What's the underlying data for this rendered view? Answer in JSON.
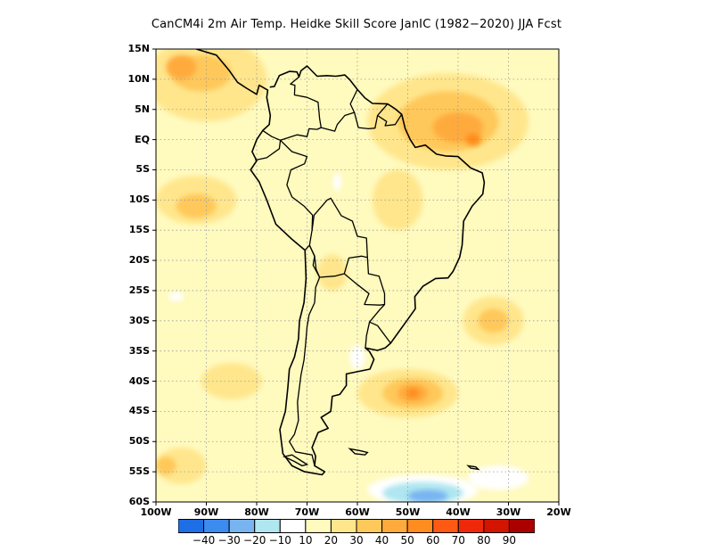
{
  "title": "CanCM4i  2m Air Temp. Heidke Skill Score JanIC (1982−2020) JJA Fcst",
  "map": {
    "lon_range": [
      -100,
      -20
    ],
    "lat_range": [
      -60,
      15
    ],
    "grid": true,
    "lat_ticks": [
      {
        "lat": 15,
        "label": "15N"
      },
      {
        "lat": 10,
        "label": "10N"
      },
      {
        "lat": 5,
        "label": "5N"
      },
      {
        "lat": 0,
        "label": "EQ"
      },
      {
        "lat": -5,
        "label": "5S"
      },
      {
        "lat": -10,
        "label": "10S"
      },
      {
        "lat": -15,
        "label": "15S"
      },
      {
        "lat": -20,
        "label": "20S"
      },
      {
        "lat": -25,
        "label": "25S"
      },
      {
        "lat": -30,
        "label": "30S"
      },
      {
        "lat": -35,
        "label": "35S"
      },
      {
        "lat": -40,
        "label": "40S"
      },
      {
        "lat": -45,
        "label": "45S"
      },
      {
        "lat": -50,
        "label": "50S"
      },
      {
        "lat": -55,
        "label": "55S"
      },
      {
        "lat": -60,
        "label": "60S"
      }
    ],
    "lon_ticks": [
      {
        "lon": -100,
        "label": "100W"
      },
      {
        "lon": -90,
        "label": "90W"
      },
      {
        "lon": -80,
        "label": "80W"
      },
      {
        "lon": -70,
        "label": "70W"
      },
      {
        "lon": -60,
        "label": "60W"
      },
      {
        "lon": -50,
        "label": "50W"
      },
      {
        "lon": -40,
        "label": "40W"
      },
      {
        "lon": -30,
        "label": "30W"
      },
      {
        "lon": -20,
        "label": "20W"
      }
    ],
    "skill_regions": [
      {
        "level": 20,
        "lon": -90,
        "lat": 10,
        "rx": 12,
        "ry": 7
      },
      {
        "level": 30,
        "lon": -91,
        "lat": 11,
        "rx": 6,
        "ry": 3
      },
      {
        "level": 40,
        "lon": -95,
        "lat": 12,
        "rx": 3,
        "ry": 2
      },
      {
        "level": 20,
        "lon": -42,
        "lat": 3,
        "rx": 16,
        "ry": 8
      },
      {
        "level": 30,
        "lon": -42,
        "lat": 3,
        "rx": 10,
        "ry": 5
      },
      {
        "level": 40,
        "lon": -40,
        "lat": 2,
        "rx": 5,
        "ry": 2.5
      },
      {
        "level": 50,
        "lon": -37,
        "lat": 0,
        "rx": 1.5,
        "ry": 1
      },
      {
        "level": 20,
        "lon": -92,
        "lat": -10,
        "rx": 8,
        "ry": 4
      },
      {
        "level": 30,
        "lon": -92,
        "lat": -11,
        "rx": 4,
        "ry": 2
      },
      {
        "level": 20,
        "lon": -50,
        "lat": -42,
        "rx": 10,
        "ry": 4
      },
      {
        "level": 30,
        "lon": -49,
        "lat": -42,
        "rx": 6,
        "ry": 2.5
      },
      {
        "level": 40,
        "lon": -49,
        "lat": -42,
        "rx": 3,
        "ry": 1.5
      },
      {
        "level": 50,
        "lon": -49,
        "lat": -42,
        "rx": 1.2,
        "ry": 0.8
      },
      {
        "level": 20,
        "lon": -33,
        "lat": -30,
        "rx": 6,
        "ry": 4
      },
      {
        "level": 30,
        "lon": -33,
        "lat": -30,
        "rx": 3,
        "ry": 2
      },
      {
        "level": 20,
        "lon": -52,
        "lat": -10,
        "rx": 5,
        "ry": 5
      },
      {
        "level": 20,
        "lon": -65,
        "lat": -22,
        "rx": 3,
        "ry": 3
      },
      {
        "level": 20,
        "lon": -95,
        "lat": -54,
        "rx": 5,
        "ry": 3
      },
      {
        "level": 30,
        "lon": -98,
        "lat": -54,
        "rx": 2,
        "ry": 1.5
      },
      {
        "level": 20,
        "lon": -85,
        "lat": -40,
        "rx": 6,
        "ry": 3
      },
      {
        "level": -10,
        "lon": -47,
        "lat": -58,
        "rx": 11,
        "ry": 2.5
      },
      {
        "level": -20,
        "lon": -47,
        "lat": -58.5,
        "rx": 8,
        "ry": 1.8
      },
      {
        "level": -30,
        "lon": -46,
        "lat": -59,
        "rx": 4,
        "ry": 1
      },
      {
        "level": -10,
        "lon": -32,
        "lat": -56,
        "rx": 6,
        "ry": 2
      },
      {
        "level": -10,
        "lon": -60,
        "lat": -36,
        "rx": 1.5,
        "ry": 2
      },
      {
        "level": -10,
        "lon": -96,
        "lat": -26,
        "rx": 1.5,
        "ry": 0.8
      },
      {
        "level": -10,
        "lon": -64,
        "lat": -7,
        "rx": 0.8,
        "ry": 1.5
      }
    ],
    "coastline": [
      [
        -92,
        15
      ],
      [
        -88,
        14
      ],
      [
        -87,
        13
      ],
      [
        -85.5,
        11.5
      ],
      [
        -83.8,
        9.5
      ],
      [
        -82,
        8.5
      ],
      [
        -80,
        7.5
      ],
      [
        -79.5,
        9
      ],
      [
        -77.8,
        8.2
      ],
      [
        -78,
        7
      ],
      [
        -77.3,
        4
      ],
      [
        -77.5,
        2.5
      ],
      [
        -78.8,
        1.5
      ],
      [
        -80,
        0
      ],
      [
        -80.9,
        -2
      ],
      [
        -80,
        -3.5
      ],
      [
        -81.2,
        -5
      ],
      [
        -79.5,
        -7
      ],
      [
        -78,
        -10
      ],
      [
        -76.2,
        -14
      ],
      [
        -73,
        -16.5
      ],
      [
        -70.4,
        -18.3
      ],
      [
        -70.2,
        -23
      ],
      [
        -70.6,
        -27
      ],
      [
        -71.5,
        -30
      ],
      [
        -71.7,
        -33
      ],
      [
        -72.5,
        -36
      ],
      [
        -73.5,
        -38
      ],
      [
        -73.8,
        -41
      ],
      [
        -74.3,
        -45
      ],
      [
        -75.4,
        -48
      ],
      [
        -74.8,
        -52
      ],
      [
        -73,
        -54
      ],
      [
        -70.5,
        -55
      ],
      [
        -67,
        -55.5
      ],
      [
        -66.5,
        -55
      ],
      [
        -68.5,
        -54
      ],
      [
        -68.3,
        -52.4
      ],
      [
        -69,
        -51
      ],
      [
        -67.8,
        -48.5
      ],
      [
        -65.8,
        -47.8
      ],
      [
        -67.2,
        -46
      ],
      [
        -65.3,
        -45
      ],
      [
        -65,
        -42.5
      ],
      [
        -63.5,
        -42.2
      ],
      [
        -62.2,
        -40.7
      ],
      [
        -62.2,
        -38.8
      ],
      [
        -57.5,
        -38
      ],
      [
        -56.7,
        -36.4
      ],
      [
        -57.6,
        -35.1
      ],
      [
        -58.4,
        -34.5
      ],
      [
        -56,
        -34.9
      ],
      [
        -54.5,
        -34.5
      ],
      [
        -53.4,
        -33.7
      ],
      [
        -51.5,
        -31.5
      ],
      [
        -50.2,
        -30
      ],
      [
        -48.5,
        -28
      ],
      [
        -48.6,
        -26
      ],
      [
        -47,
        -24.3
      ],
      [
        -44.5,
        -23
      ],
      [
        -42,
        -22.9
      ],
      [
        -41,
        -21.8
      ],
      [
        -39.7,
        -19.5
      ],
      [
        -39.2,
        -17.5
      ],
      [
        -38.9,
        -13.5
      ],
      [
        -37.2,
        -11
      ],
      [
        -35.1,
        -9
      ],
      [
        -34.8,
        -7.1
      ],
      [
        -35.2,
        -5.5
      ],
      [
        -37.5,
        -4.7
      ],
      [
        -40,
        -2.8
      ],
      [
        -42.5,
        -2.7
      ],
      [
        -44.3,
        -2.4
      ],
      [
        -46.5,
        -0.9
      ],
      [
        -48.5,
        -1.3
      ],
      [
        -49.5,
        0
      ],
      [
        -50.5,
        1.8
      ],
      [
        -51.2,
        4.2
      ],
      [
        -52.5,
        5.1
      ],
      [
        -54,
        5.9
      ],
      [
        -57,
        6
      ],
      [
        -58.5,
        6.9
      ],
      [
        -60,
        8.3
      ],
      [
        -61.5,
        9.9
      ],
      [
        -62.5,
        10.7
      ],
      [
        -64.3,
        10.5
      ],
      [
        -66,
        10.6
      ],
      [
        -68,
        10.5
      ],
      [
        -70,
        12.2
      ],
      [
        -71.2,
        11.4
      ],
      [
        -71.6,
        10.4
      ],
      [
        -72,
        11.2
      ],
      [
        -73.5,
        11.3
      ],
      [
        -75.5,
        10.6
      ],
      [
        -76.5,
        8.8
      ],
      [
        -77.4,
        8.7
      ]
    ],
    "borders": [
      [
        [
          -78.8,
          1.5
        ],
        [
          -77,
          0.5
        ],
        [
          -75.3,
          -0.1
        ],
        [
          -75.5,
          -1.5
        ],
        [
          -78,
          -3
        ],
        [
          -80.3,
          -3.4
        ]
      ],
      [
        [
          -70.4,
          -18.3
        ],
        [
          -69.5,
          -17.5
        ],
        [
          -69,
          -15
        ],
        [
          -68.9,
          -12.5
        ],
        [
          -70.6,
          -11
        ],
        [
          -73,
          -9.5
        ],
        [
          -74,
          -7.5
        ],
        [
          -73.2,
          -5
        ],
        [
          -70.5,
          -4
        ],
        [
          -70,
          -2.8
        ],
        [
          -73,
          -2
        ],
        [
          -75.3,
          -0.1
        ]
      ],
      [
        [
          -75.3,
          -0.1
        ],
        [
          -72,
          0.8
        ],
        [
          -70,
          0.5
        ],
        [
          -69.6,
          1.8
        ],
        [
          -68,
          1.7
        ],
        [
          -67.2,
          2
        ],
        [
          -67.5,
          3.5
        ],
        [
          -67.8,
          6.2
        ],
        [
          -70,
          7
        ],
        [
          -72.5,
          7.4
        ],
        [
          -72.4,
          9
        ],
        [
          -73.3,
          9.2
        ],
        [
          -71.6,
          10.4
        ]
      ],
      [
        [
          -67.2,
          2
        ],
        [
          -64.5,
          1.4
        ],
        [
          -64,
          2.5
        ],
        [
          -62.5,
          4
        ],
        [
          -60.6,
          4.5
        ],
        [
          -61.4,
          5.9
        ],
        [
          -60,
          8.3
        ]
      ],
      [
        [
          -60.6,
          4.5
        ],
        [
          -59.8,
          2
        ],
        [
          -57.8,
          1.8
        ],
        [
          -56.5,
          1.9
        ],
        [
          -56,
          4
        ],
        [
          -54,
          5.9
        ]
      ],
      [
        [
          -56,
          4
        ],
        [
          -54.2,
          3
        ],
        [
          -54.5,
          2.3
        ],
        [
          -52.5,
          2.5
        ],
        [
          -51.2,
          4.2
        ]
      ],
      [
        [
          -69,
          -15
        ],
        [
          -68.6,
          -12.5
        ],
        [
          -66,
          -10
        ],
        [
          -65.3,
          -9.7
        ],
        [
          -63.2,
          -12.6
        ],
        [
          -61,
          -13.5
        ],
        [
          -60,
          -16
        ],
        [
          -58.2,
          -16.3
        ],
        [
          -58,
          -19.5
        ],
        [
          -59.2,
          -19.3
        ],
        [
          -61.7,
          -19.6
        ],
        [
          -62.6,
          -22.2
        ],
        [
          -64.5,
          -22.6
        ],
        [
          -67.5,
          -22.8
        ],
        [
          -68.8,
          -20.8
        ],
        [
          -68.5,
          -19.3
        ],
        [
          -69.5,
          -17.5
        ]
      ],
      [
        [
          -58,
          -19.5
        ],
        [
          -57.8,
          -22.2
        ],
        [
          -55.7,
          -22.6
        ],
        [
          -54.6,
          -25.5
        ],
        [
          -54.6,
          -27.3
        ],
        [
          -55.6,
          -27.4
        ],
        [
          -58.6,
          -27.3
        ],
        [
          -57.7,
          -25.5
        ],
        [
          -60,
          -24
        ],
        [
          -62.6,
          -22.2
        ]
      ],
      [
        [
          -54.6,
          -27.3
        ],
        [
          -55.6,
          -28.2
        ],
        [
          -57.6,
          -30.2
        ],
        [
          -56,
          -30.8
        ],
        [
          -53.4,
          -33.7
        ]
      ],
      [
        [
          -57.6,
          -30.2
        ],
        [
          -58.2,
          -32.5
        ],
        [
          -58.4,
          -34.5
        ]
      ],
      [
        [
          -67.5,
          -22.8
        ],
        [
          -68.3,
          -24.5
        ],
        [
          -68.5,
          -27
        ],
        [
          -69.6,
          -29
        ],
        [
          -70,
          -31
        ],
        [
          -70.3,
          -34
        ],
        [
          -70.6,
          -36.5
        ],
        [
          -71.2,
          -39
        ],
        [
          -71.9,
          -43.5
        ],
        [
          -71.7,
          -46.5
        ],
        [
          -72.5,
          -48.8
        ],
        [
          -73.5,
          -50
        ],
        [
          -72.3,
          -51.7
        ],
        [
          -69,
          -52.2
        ],
        [
          -68.5,
          -54
        ]
      ],
      [
        [
          -69.5,
          -17.5
        ],
        [
          -68.5,
          -19.3
        ],
        [
          -68.2,
          -21.5
        ],
        [
          -67.5,
          -22.8
        ]
      ]
    ],
    "islands": [
      [
        [
          -74.5,
          -52.5
        ],
        [
          -72.5,
          -53.3
        ],
        [
          -71,
          -54
        ],
        [
          -70,
          -53.8
        ],
        [
          -73,
          -52.2
        ]
      ],
      [
        [
          -61.5,
          -51.2
        ],
        [
          -59.5,
          -51.5
        ],
        [
          -58,
          -51.8
        ],
        [
          -58.5,
          -52.2
        ],
        [
          -60.5,
          -52
        ]
      ],
      [
        [
          -38,
          -54
        ],
        [
          -36.5,
          -54.2
        ],
        [
          -36,
          -54.6
        ],
        [
          -37.5,
          -54.4
        ]
      ]
    ]
  },
  "colorbar": {
    "colors": [
      "#1e6ee6",
      "#3c8cf0",
      "#78b4f0",
      "#afe6f0",
      "#ffffff",
      "#fffabe",
      "#ffe68c",
      "#ffc85a",
      "#ffaa3c",
      "#ff8c1e",
      "#ff5a14",
      "#f0280a",
      "#d21400",
      "#aa0000"
    ],
    "levels": [
      -50,
      -40,
      -30,
      -20,
      -10,
      10,
      20,
      30,
      40,
      50,
      60,
      70,
      80,
      90,
      100
    ],
    "labels": [
      "−40",
      "−30",
      "−20",
      "−10",
      "10",
      "20",
      "30",
      "40",
      "50",
      "60",
      "70",
      "80",
      "90"
    ]
  }
}
